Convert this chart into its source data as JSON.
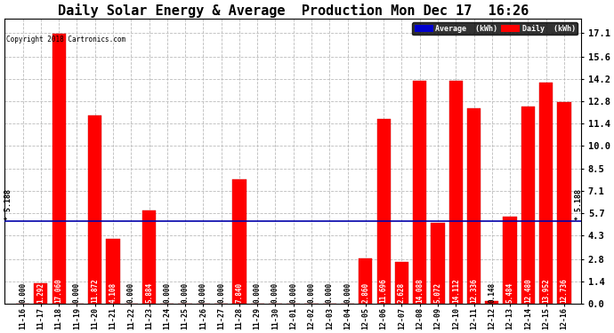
{
  "title": "Daily Solar Energy & Average  Production Mon Dec 17  16:26",
  "copyright": "Copyright 2018 Cartronics.com",
  "categories": [
    "11-16",
    "11-17",
    "11-18",
    "11-19",
    "11-20",
    "11-21",
    "11-22",
    "11-23",
    "11-24",
    "11-25",
    "11-26",
    "11-27",
    "11-28",
    "11-29",
    "11-30",
    "12-01",
    "12-02",
    "12-03",
    "12-04",
    "12-05",
    "12-06",
    "12-07",
    "12-08",
    "12-09",
    "12-10",
    "12-11",
    "12-12",
    "12-13",
    "12-14",
    "12-15",
    "12-16"
  ],
  "values": [
    0.0,
    1.292,
    17.06,
    0.0,
    11.872,
    4.108,
    0.0,
    5.884,
    0.0,
    0.0,
    0.0,
    0.0,
    7.84,
    0.0,
    0.0,
    0.0,
    0.0,
    0.0,
    0.0,
    2.86,
    11.696,
    2.628,
    14.088,
    5.072,
    14.112,
    12.336,
    0.148,
    5.484,
    12.48,
    13.952,
    12.736
  ],
  "average": 5.188,
  "avg_label": "5.188",
  "bar_color": "#ff0000",
  "average_color": "#0000aa",
  "background_color": "#ffffff",
  "grid_color": "#bbbbbb",
  "yticks": [
    0.0,
    1.4,
    2.8,
    4.3,
    5.7,
    7.1,
    8.5,
    10.0,
    11.4,
    12.8,
    14.2,
    15.6,
    17.1
  ],
  "ylim": [
    0.0,
    18.0
  ],
  "legend_avg_color": "#0000cc",
  "legend_daily_color": "#ff0000",
  "title_fontsize": 11,
  "tick_fontsize": 6,
  "value_fontsize": 5.5
}
